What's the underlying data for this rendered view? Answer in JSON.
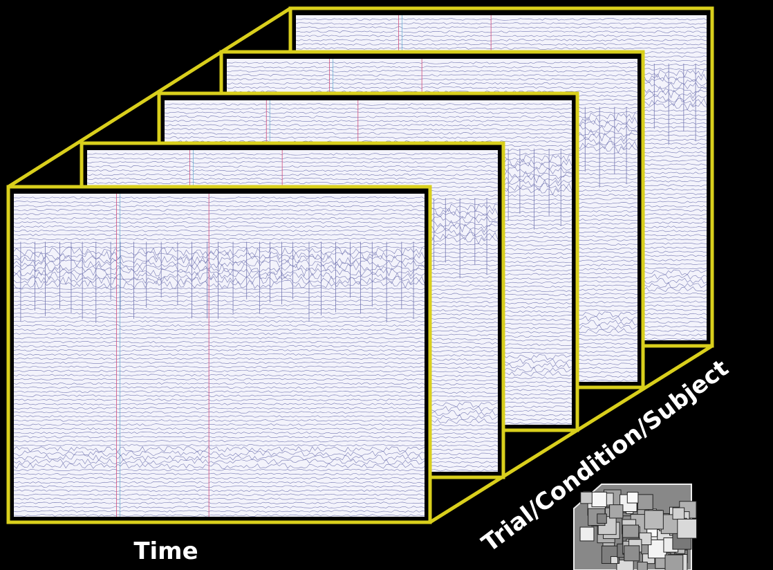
{
  "labels": {
    "time": "Time",
    "dimension": "Trial/Condition/Subject"
  }
}
